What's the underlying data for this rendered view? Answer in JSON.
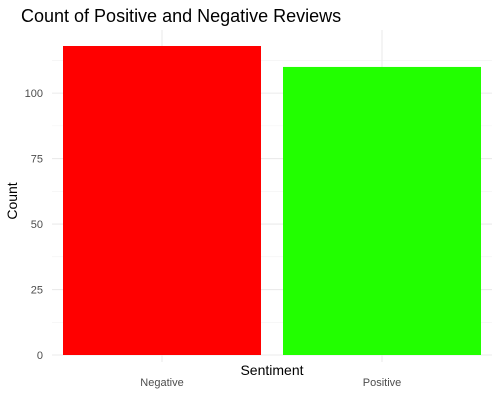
{
  "chart_data": {
    "type": "bar",
    "title": "Count of Positive and Negative Reviews",
    "xlabel": "Sentiment",
    "ylabel": "Count",
    "categories": [
      "Negative",
      "Positive"
    ],
    "values": [
      118,
      110
    ],
    "colors": [
      "#ff0000",
      "#22ff00"
    ],
    "ylim": [
      0,
      118
    ],
    "yticks": [
      0,
      25,
      50,
      75,
      100
    ],
    "grid": true,
    "legend": "none",
    "theme": "minimal"
  }
}
